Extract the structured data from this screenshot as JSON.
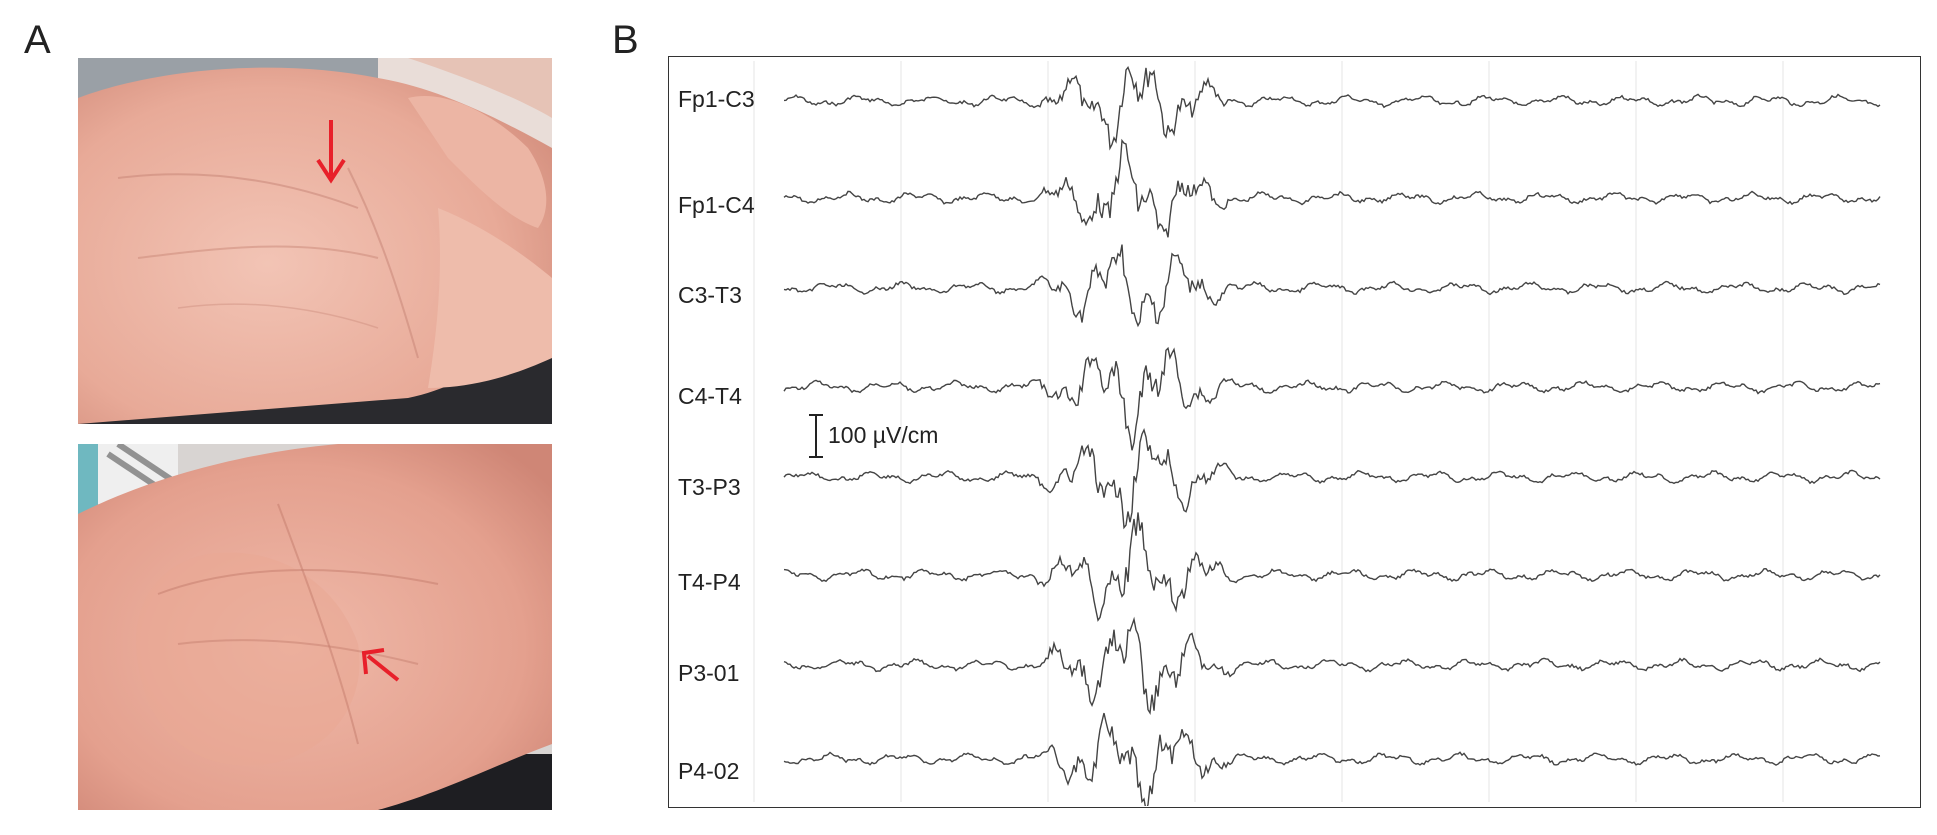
{
  "figure": {
    "panel_a_label": "A",
    "panel_b_label": "B"
  },
  "photos": [
    {
      "annotation": "red-arrow-pointing-down",
      "arrow_color": "#e8202a"
    },
    {
      "annotation": "red-arrow-pointing-up-left",
      "arrow_color": "#e8202a"
    }
  ],
  "eeg": {
    "channels": [
      "Fp1-C3",
      "Fp1-C4",
      "C3-T3",
      "C4-T4",
      "T3-P3",
      "T4-P4",
      "P3-01",
      "P4-02"
    ],
    "scale_bar_label": "100 µV/cm",
    "trace_color": "#444444"
  }
}
